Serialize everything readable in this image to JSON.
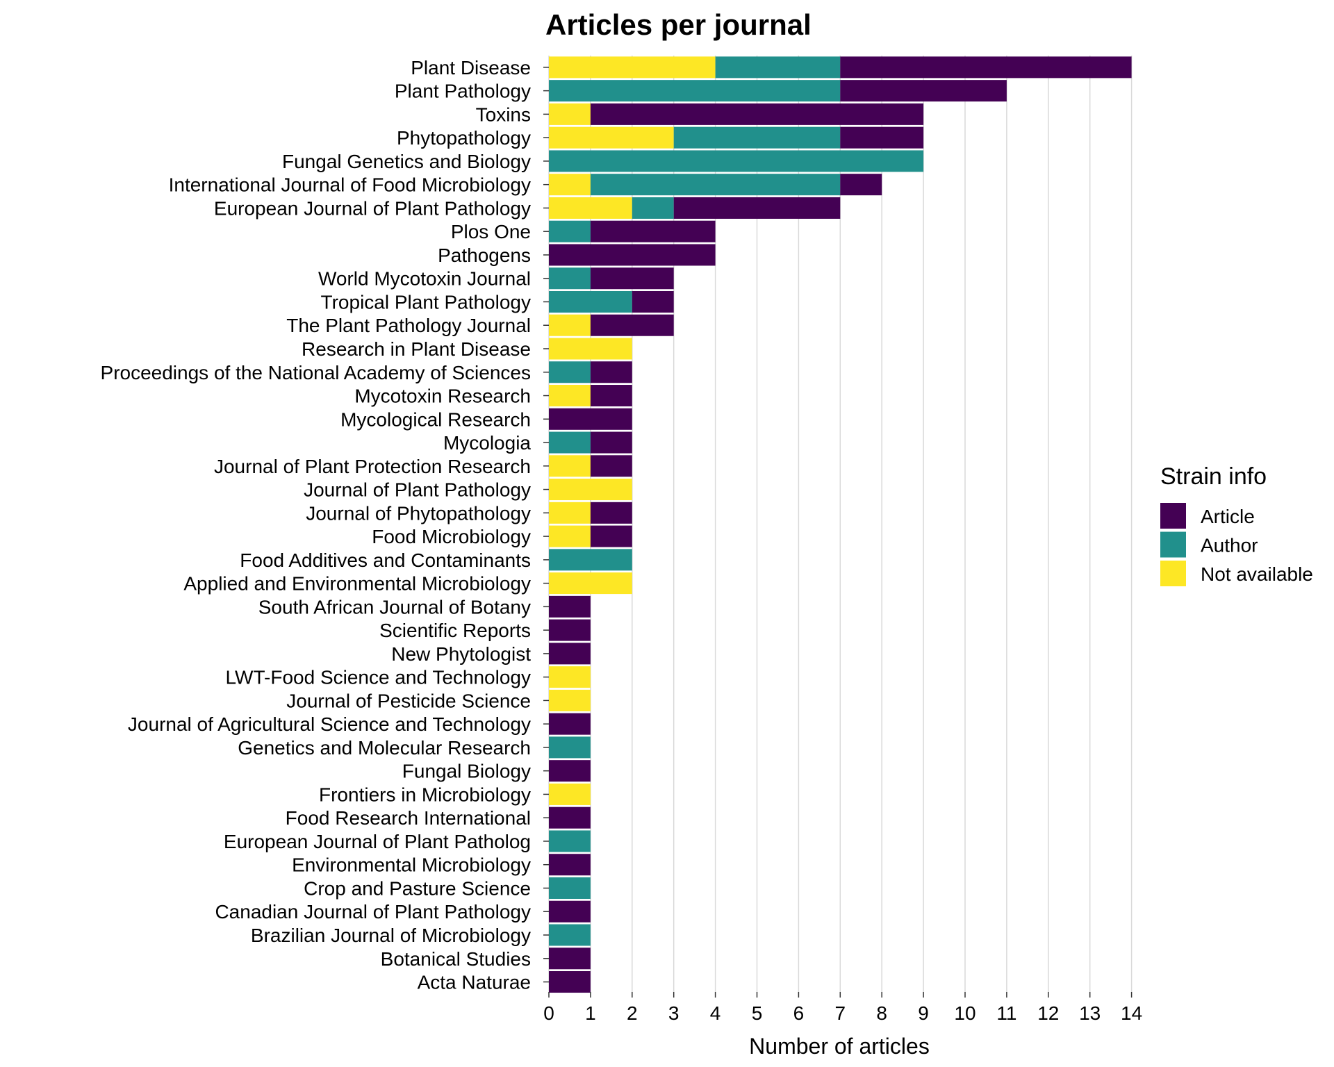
{
  "chart_data": {
    "type": "bar",
    "orientation": "horizontal",
    "stacked": true,
    "title": "Articles per journal",
    "xlabel": "Number of articles",
    "ylabel": "",
    "xlim": [
      0,
      14
    ],
    "xticks": [
      0,
      1,
      2,
      3,
      4,
      5,
      6,
      7,
      8,
      9,
      10,
      11,
      12,
      13,
      14
    ],
    "grid": "vertical",
    "legend": {
      "title": "Strain info",
      "placement": "right",
      "items": [
        {
          "name": "Article",
          "color": "#440154"
        },
        {
          "name": "Author",
          "color": "#21908C"
        },
        {
          "name": "Not available",
          "color": "#FDE725"
        }
      ]
    },
    "stack_order_left_to_right": [
      "Not available",
      "Author",
      "Article"
    ],
    "categories": [
      "Plant Disease",
      "Plant Pathology",
      "Toxins",
      "Phytopathology",
      "Fungal Genetics and Biology",
      "International Journal of Food Microbiology",
      "European Journal of Plant Pathology",
      "Plos One",
      "Pathogens",
      "World Mycotoxin Journal",
      "Tropical Plant Pathology",
      "The Plant Pathology Journal",
      "Research in Plant Disease",
      "Proceedings of the National Academy of Sciences",
      "Mycotoxin Research",
      "Mycological Research",
      "Mycologia",
      "Journal of Plant Protection Research",
      "Journal of Plant Pathology",
      "Journal of Phytopathology",
      "Food Microbiology",
      "Food Additives and Contaminants",
      "Applied and Environmental Microbiology",
      "South African Journal of Botany",
      "Scientific Reports",
      "New Phytologist",
      "LWT-Food Science and Technology",
      "Journal of Pesticide Science",
      "Journal of Agricultural Science and Technology",
      "Genetics and Molecular Research",
      "Fungal Biology",
      "Frontiers in Microbiology",
      "Food Research International",
      "European Journal of Plant Patholog",
      "Environmental Microbiology",
      "Crop and Pasture Science",
      "Canadian Journal of Plant Pathology",
      "Brazilian Journal of Microbiology",
      "Botanical Studies",
      "Acta Naturae"
    ],
    "series": [
      {
        "name": "Article",
        "values": [
          7,
          4,
          8,
          2,
          0,
          1,
          4,
          3,
          4,
          2,
          1,
          2,
          0,
          1,
          1,
          2,
          1,
          1,
          0,
          1,
          1,
          0,
          0,
          1,
          1,
          1,
          0,
          0,
          1,
          0,
          1,
          0,
          1,
          0,
          1,
          0,
          1,
          0,
          1,
          1
        ]
      },
      {
        "name": "Author",
        "values": [
          3,
          7,
          0,
          4,
          9,
          6,
          1,
          1,
          0,
          1,
          2,
          0,
          0,
          1,
          0,
          0,
          1,
          0,
          0,
          0,
          0,
          2,
          0,
          0,
          0,
          0,
          0,
          0,
          0,
          1,
          0,
          0,
          0,
          1,
          0,
          1,
          0,
          1,
          0,
          0
        ]
      },
      {
        "name": "Not available",
        "values": [
          4,
          0,
          1,
          3,
          0,
          1,
          2,
          0,
          0,
          0,
          0,
          1,
          2,
          0,
          1,
          0,
          0,
          1,
          2,
          1,
          1,
          0,
          2,
          0,
          0,
          0,
          1,
          1,
          0,
          0,
          0,
          1,
          0,
          0,
          0,
          0,
          0,
          0,
          0,
          0
        ]
      }
    ]
  }
}
